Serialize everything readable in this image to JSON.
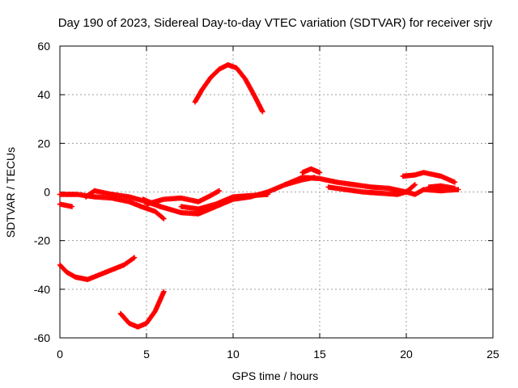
{
  "chart_data": {
    "type": "scatter",
    "title": "Day 190 of 2023, Sidereal Day-to-day VTEC variation (SDTVAR) for receiver srjv",
    "xlabel": "GPS time / hours",
    "ylabel": "SDTVAR / TECUs",
    "xlim": [
      0,
      25
    ],
    "ylim": [
      -60,
      60
    ],
    "xticks": [
      0,
      5,
      10,
      15,
      20,
      25
    ],
    "yticks": [
      -60,
      -40,
      -20,
      0,
      20,
      40,
      60
    ],
    "xtick_labels": [
      "0",
      "5",
      "10",
      "15",
      "20",
      "25"
    ],
    "ytick_labels": [
      "-60",
      "-40",
      "-20",
      "0",
      "20",
      "40",
      "60"
    ],
    "grid": true,
    "marker": "plus",
    "color": "#ff0000",
    "series": [
      {
        "name": "arc-high",
        "x": [
          7.8,
          8.2,
          8.7,
          9.2,
          9.7,
          10.2,
          10.7,
          11.2,
          11.7
        ],
        "y": [
          37,
          42,
          47,
          50.5,
          52.3,
          51,
          46.5,
          40,
          33
        ]
      },
      {
        "name": "arc-low-left",
        "x": [
          0,
          0.4,
          0.9,
          1.6,
          2.3,
          3.0,
          3.7,
          4.3
        ],
        "y": [
          -30,
          -33,
          -35,
          -36,
          -34,
          -32,
          -30,
          -27
        ]
      },
      {
        "name": "arc-bottom",
        "x": [
          3.5,
          4.0,
          4.5,
          5.0,
          5.5,
          6.0
        ],
        "y": [
          -50,
          -54,
          -55.5,
          -54,
          -49,
          -41
        ]
      },
      {
        "name": "track-1",
        "x": [
          0,
          1,
          2,
          3,
          4,
          4.7,
          5.5,
          6.0
        ],
        "y": [
          -1,
          -1,
          -2,
          -2.5,
          -4,
          -6,
          -8,
          -11
        ]
      },
      {
        "name": "track-2",
        "x": [
          0,
          0.7
        ],
        "y": [
          -5,
          -6
        ]
      },
      {
        "name": "track-3",
        "x": [
          1.5,
          2.0,
          3.0,
          4.0,
          5.0,
          5.8
        ],
        "y": [
          -2,
          0.5,
          -1,
          -2,
          -4,
          -6
        ]
      },
      {
        "name": "track-4",
        "x": [
          5.0,
          6.0,
          7.0,
          8.0,
          8.7,
          9.2
        ],
        "y": [
          -5,
          -3,
          -2.5,
          -4,
          -1.5,
          0.5
        ]
      },
      {
        "name": "track-5",
        "x": [
          4.8,
          5.8,
          7.0,
          8.0,
          9.0,
          10.0,
          11.0,
          12.0,
          13.0,
          14.0,
          14.7
        ],
        "y": [
          -3,
          -6,
          -8.5,
          -9,
          -6,
          -3,
          -2,
          0,
          3,
          5,
          6
        ]
      },
      {
        "name": "track-6",
        "x": [
          7.0,
          8.0,
          9.0,
          10.0,
          11.0,
          12.0
        ],
        "y": [
          -6,
          -7,
          -5,
          -2,
          -1.5,
          -1
        ]
      },
      {
        "name": "track-7",
        "x": [
          13.0,
          14.0,
          15.0,
          16.0,
          17.0,
          18.0,
          19.0,
          20.0,
          20.5,
          21.0,
          22.0,
          23.0
        ],
        "y": [
          3,
          6,
          5.5,
          4,
          3,
          2,
          1.5,
          0,
          -1,
          1,
          0.5,
          1
        ]
      },
      {
        "name": "track-8",
        "x": [
          14.0,
          14.5,
          15.0
        ],
        "y": [
          8,
          9.5,
          8
        ]
      },
      {
        "name": "track-9",
        "x": [
          15.5,
          16.5,
          17.5,
          18.5,
          19.5,
          20.0,
          20.5
        ],
        "y": [
          2,
          1,
          0,
          -0.5,
          -1,
          0,
          3
        ]
      },
      {
        "name": "track-10",
        "x": [
          19.8,
          20.5,
          21.0,
          22.0,
          22.8
        ],
        "y": [
          6.5,
          7,
          8,
          6.5,
          4
        ]
      },
      {
        "name": "track-11",
        "x": [
          21.3,
          22.0,
          22.8
        ],
        "y": [
          2,
          2.5,
          1.5
        ]
      }
    ]
  }
}
